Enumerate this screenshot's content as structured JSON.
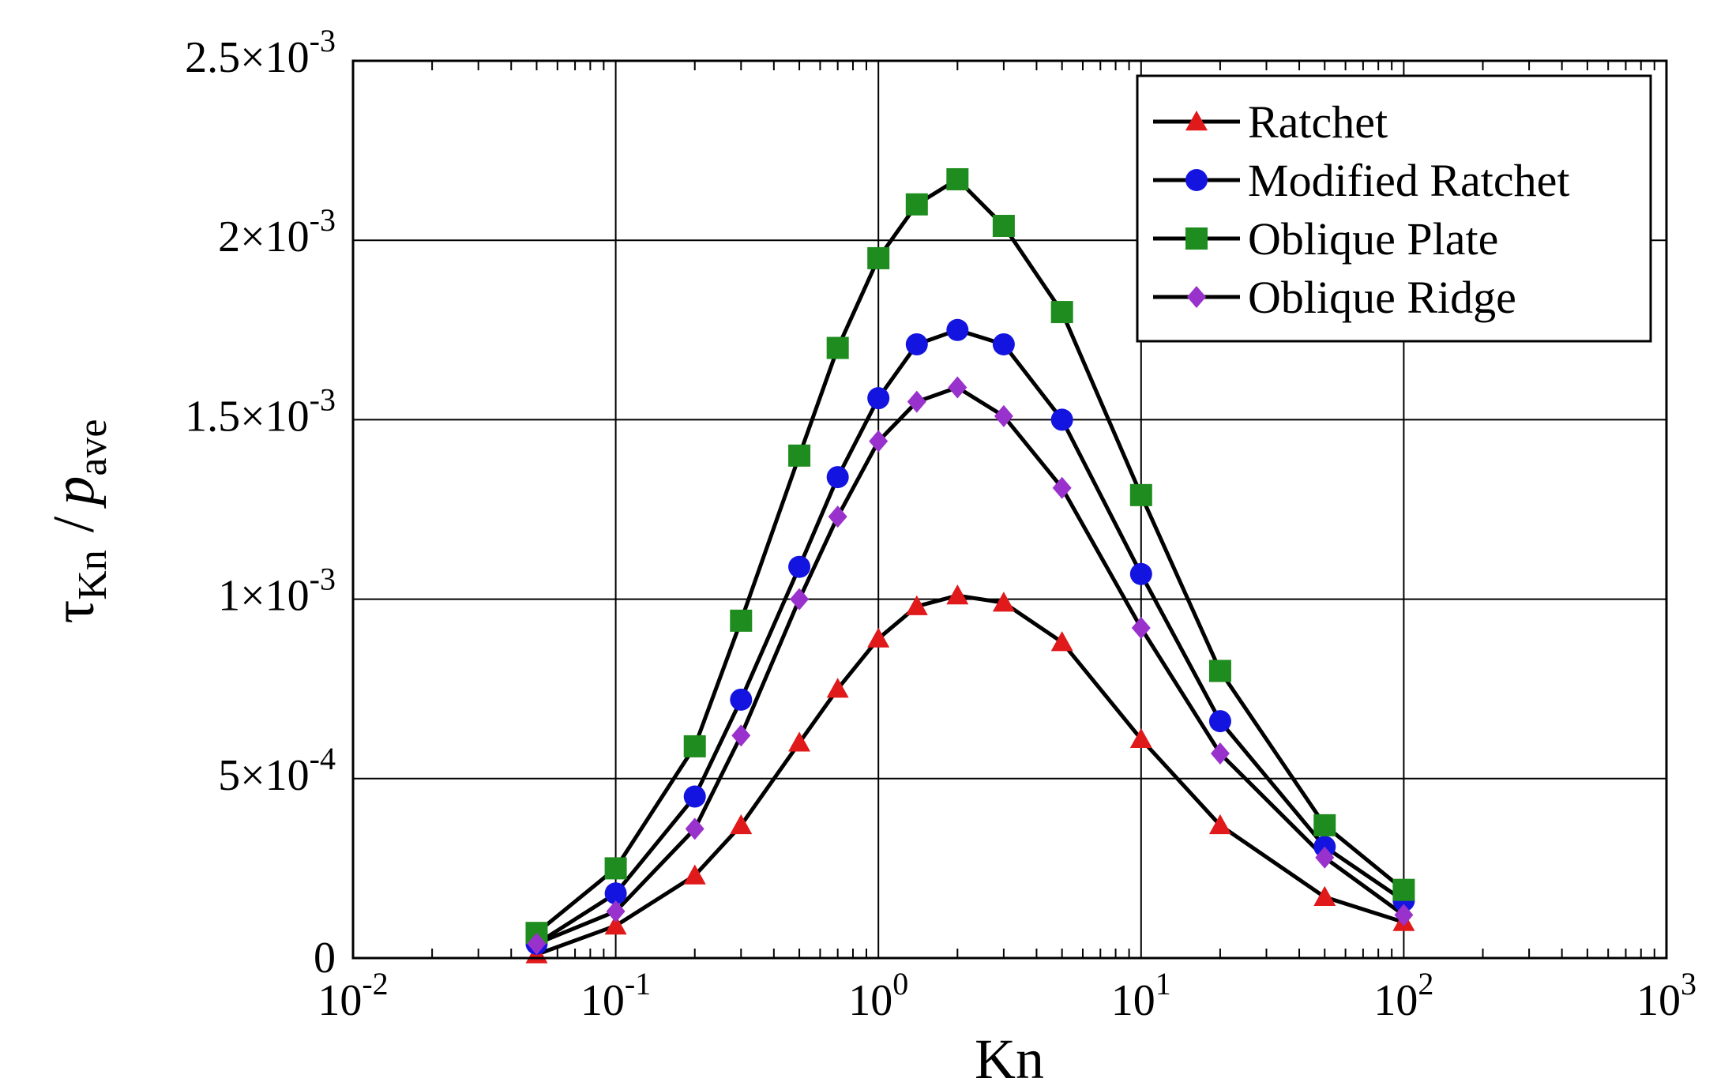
{
  "chart_data": {
    "type": "line",
    "xscale": "log",
    "xlim": [
      0.01,
      1000
    ],
    "ylim": [
      0,
      0.0025
    ],
    "grid": true,
    "legend_position": "top-right",
    "xlabel": "Kn",
    "ylabel": {
      "symbol": "τ",
      "symbol_sub": "Kn",
      "divider": "/",
      "p": "p",
      "p_sub": "ave"
    },
    "x_ticks": [
      {
        "value": 0.01,
        "base": "10",
        "exp": "-2"
      },
      {
        "value": 0.1,
        "base": "10",
        "exp": "-1"
      },
      {
        "value": 1,
        "base": "10",
        "exp": "0"
      },
      {
        "value": 10,
        "base": "10",
        "exp": "1"
      },
      {
        "value": 100,
        "base": "10",
        "exp": "2"
      },
      {
        "value": 1000,
        "base": "10",
        "exp": "3"
      }
    ],
    "y_ticks": [
      {
        "value": 0,
        "mant": "0",
        "exp": ""
      },
      {
        "value": 0.0005,
        "mant": "5×10",
        "exp": "-4"
      },
      {
        "value": 0.001,
        "mant": "1×10",
        "exp": "-3"
      },
      {
        "value": 0.0015,
        "mant": "1.5×10",
        "exp": "-3"
      },
      {
        "value": 0.002,
        "mant": "2×10",
        "exp": "-3"
      },
      {
        "value": 0.0025,
        "mant": "2.5×10",
        "exp": "-3"
      }
    ],
    "x": [
      0.05,
      0.1,
      0.2,
      0.3,
      0.5,
      0.7,
      1,
      1.4,
      2,
      3,
      5,
      10,
      20,
      50,
      100
    ],
    "series": [
      {
        "name": "Ratchet",
        "marker": "triangle",
        "color": "#e0191b",
        "values": [
          1e-05,
          9e-05,
          0.00023,
          0.00037,
          0.0006,
          0.00075,
          0.00089,
          0.00098,
          0.00101,
          0.00099,
          0.00088,
          0.00061,
          0.00037,
          0.00017,
          0.0001
        ]
      },
      {
        "name": "Modified Ratchet",
        "marker": "circle",
        "color": "#1414e0",
        "values": [
          4e-05,
          0.00018,
          0.00045,
          0.00072,
          0.00109,
          0.00134,
          0.00156,
          0.00171,
          0.00175,
          0.00171,
          0.0015,
          0.00107,
          0.00066,
          0.00031,
          0.00016
        ]
      },
      {
        "name": "Oblique Plate",
        "marker": "square",
        "color": "#1e8c1e",
        "values": [
          7e-05,
          0.00025,
          0.00059,
          0.00094,
          0.0014,
          0.0017,
          0.00195,
          0.0021,
          0.00217,
          0.00204,
          0.0018,
          0.00129,
          0.0008,
          0.00037,
          0.00019
        ]
      },
      {
        "name": "Oblique Ridge",
        "marker": "diamond",
        "color": "#9932cc",
        "values": [
          4e-05,
          0.00013,
          0.00036,
          0.00062,
          0.001,
          0.00123,
          0.00144,
          0.00155,
          0.00159,
          0.00151,
          0.00131,
          0.00092,
          0.00057,
          0.00028,
          0.00012
        ]
      }
    ]
  }
}
